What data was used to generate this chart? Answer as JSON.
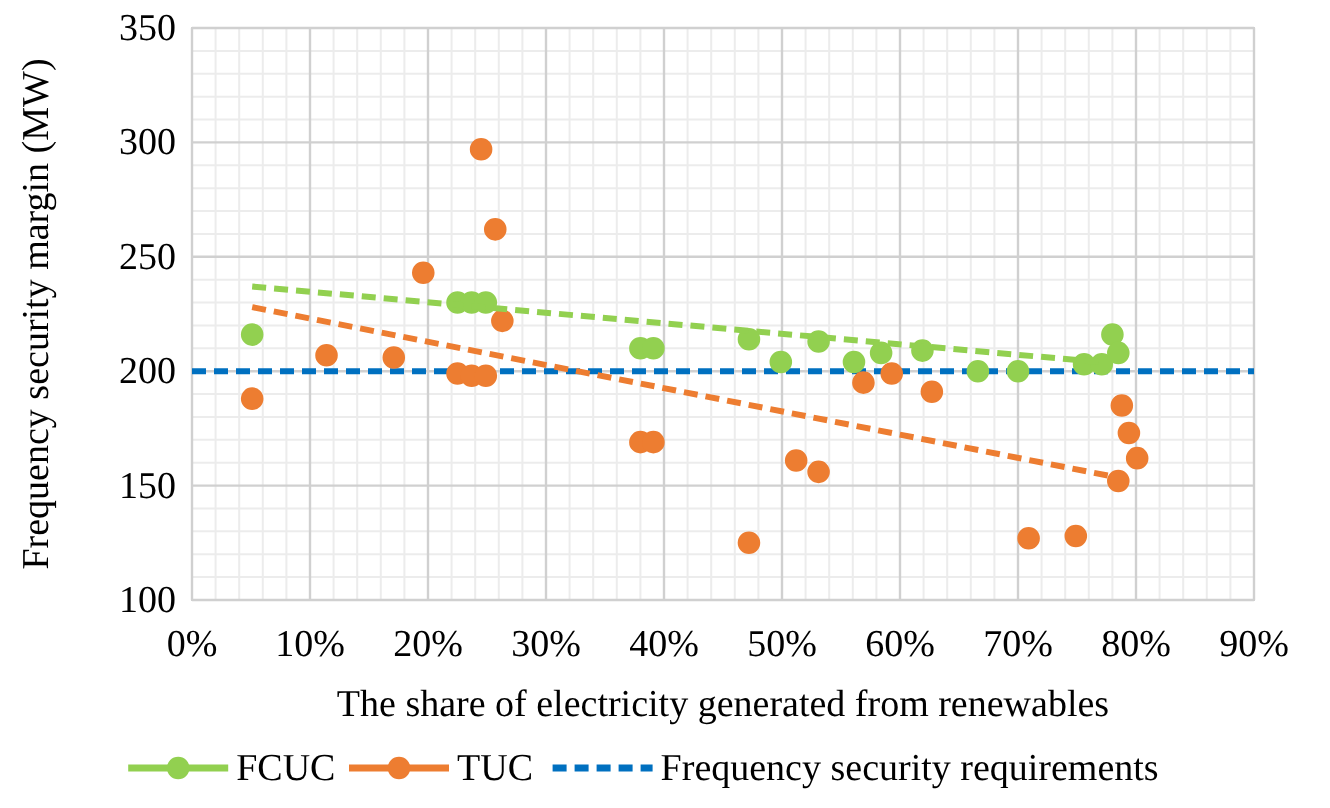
{
  "chart_data": {
    "type": "scatter",
    "xlabel": "The share of electricity generated from renewables",
    "ylabel": "Frequency security margin (MW)",
    "xlim": [
      0,
      90
    ],
    "xticks": [
      {
        "value": 0,
        "label": "0%"
      },
      {
        "value": 10,
        "label": "10%"
      },
      {
        "value": 20,
        "label": "20%"
      },
      {
        "value": 30,
        "label": "30%"
      },
      {
        "value": 40,
        "label": "40%"
      },
      {
        "value": 50,
        "label": "50%"
      },
      {
        "value": 60,
        "label": "60%"
      },
      {
        "value": 70,
        "label": "70%"
      },
      {
        "value": 80,
        "label": "80%"
      },
      {
        "value": 90,
        "label": "90%"
      }
    ],
    "ylim": [
      100,
      350
    ],
    "yticks": [
      100,
      150,
      200,
      250,
      300,
      350
    ],
    "grid": true,
    "legend": "bottom",
    "marker": "circle",
    "series": [
      {
        "name": "FCUC",
        "color": "#92d050",
        "x": [
          5.1,
          22.5,
          23.7,
          24.9,
          38.0,
          39.1,
          47.2,
          49.9,
          53.1,
          56.1,
          58.4,
          61.9,
          66.6,
          70.0,
          75.6,
          77.1,
          78.0,
          78.5
        ],
        "values": [
          216,
          230,
          230,
          230,
          210,
          210,
          214,
          204,
          213,
          204,
          208,
          209,
          200,
          200,
          203,
          203,
          216,
          208
        ]
      },
      {
        "name": "TUC",
        "color": "#ed7d31",
        "x": [
          5.1,
          11.4,
          17.1,
          19.6,
          22.5,
          23.7,
          24.9,
          24.5,
          25.7,
          26.3,
          38.0,
          39.1,
          47.2,
          51.2,
          53.1,
          56.9,
          59.3,
          62.7,
          70.9,
          74.9,
          78.8,
          79.4,
          80.1,
          78.5
        ],
        "values": [
          188,
          207,
          206,
          243,
          199,
          198,
          198,
          297,
          262,
          222,
          169,
          169,
          125,
          161,
          156,
          195,
          199,
          191,
          127,
          128,
          185,
          173,
          162,
          152
        ]
      },
      {
        "type": "line",
        "color": "#92d050",
        "line_style": "dashed",
        "marker": "none",
        "x": [
          5.1,
          76.9
        ],
        "values": [
          237,
          204
        ]
      },
      {
        "type": "line",
        "color": "#ed7d31",
        "line_style": "dashed",
        "marker": "none",
        "x": [
          5.1,
          78.0
        ],
        "values": [
          228,
          154
        ]
      }
    ],
    "ref_lines": [
      {
        "axis": "y",
        "value": 200,
        "label": "Frequency security requirements",
        "color": "#0070c0",
        "line_style": "dashed"
      }
    ]
  }
}
